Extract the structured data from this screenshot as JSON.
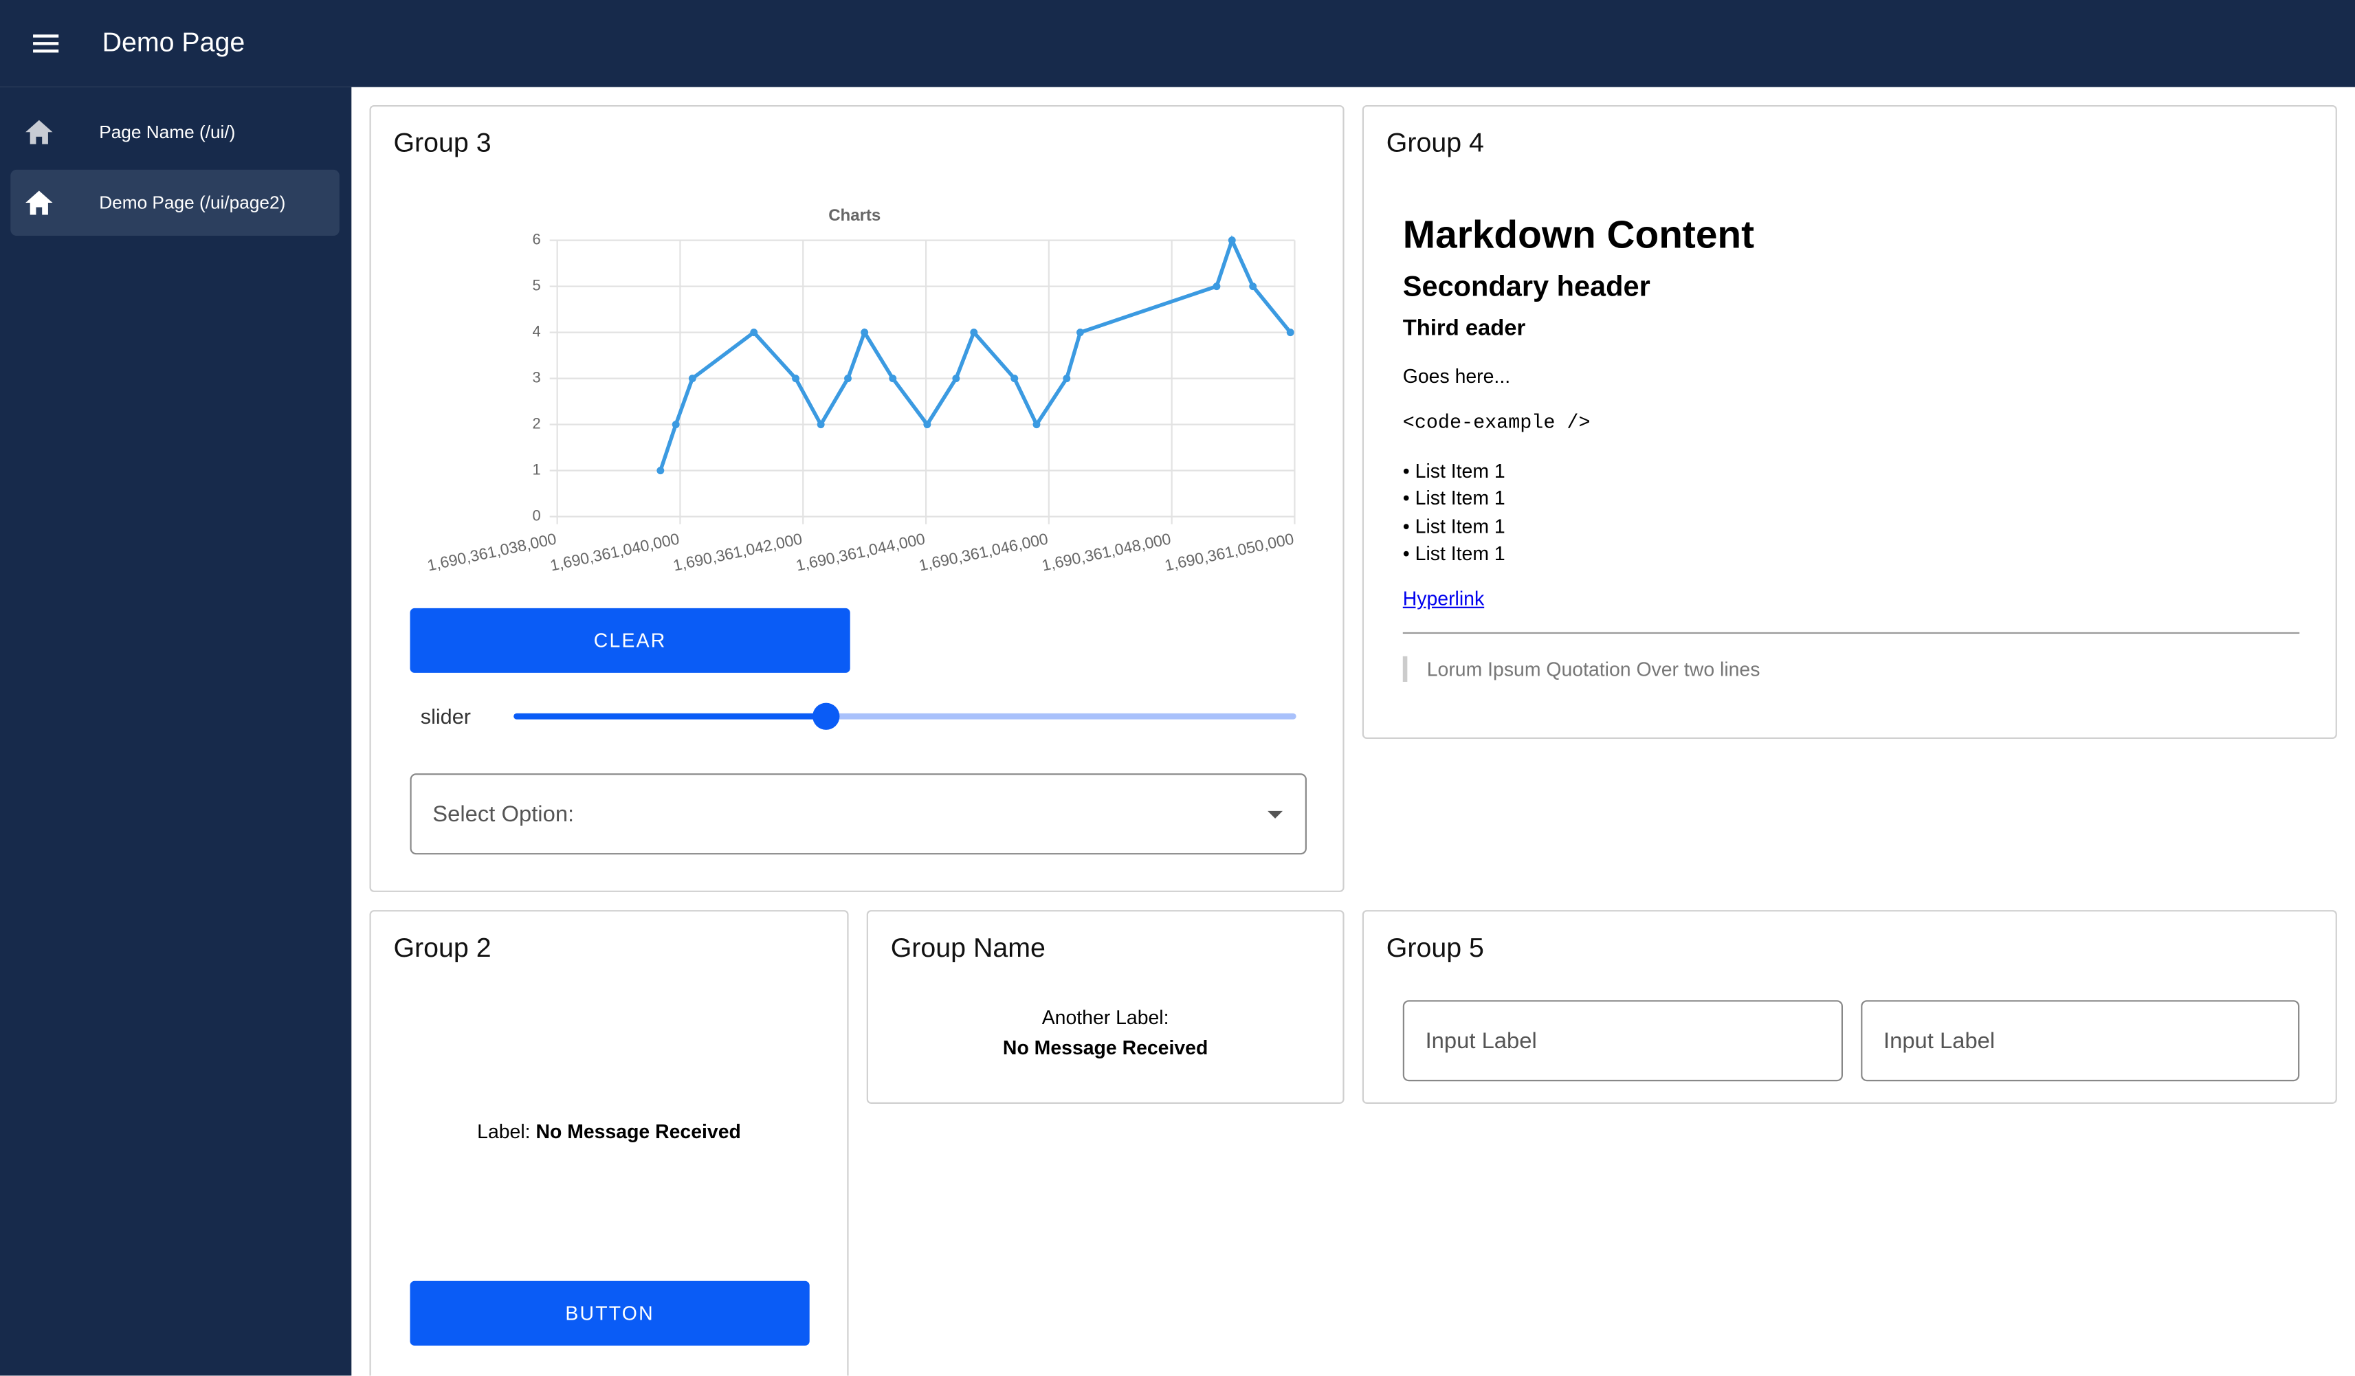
{
  "header": {
    "title": "Demo Page"
  },
  "nav": {
    "items": [
      "Page Name (/ui/)",
      "Demo Page (/ui/page2)"
    ]
  },
  "group3": {
    "title": "Group 3",
    "button": "CLEAR",
    "slider_label": "slider",
    "select_placeholder": "Select Option:"
  },
  "group4": {
    "title": "Group 4",
    "h1": "Markdown Content",
    "h2": "Secondary header",
    "h3": "Third eader",
    "paragraph": "Goes here...",
    "code": "<code-example />",
    "list": [
      "List Item 1",
      "List Item 1",
      "List Item 1",
      "List Item 1"
    ],
    "link": "Hyperlink",
    "quote": "Lorum Ipsum Quotation Over two lines"
  },
  "group2": {
    "title": "Group 2",
    "label": "Label:",
    "message": "No Message Received",
    "button": "BUTTON"
  },
  "group_name": {
    "title": "Group Name",
    "label": "Another Label:",
    "message": "No Message Received"
  },
  "group5": {
    "title": "Group 5",
    "inputs": [
      "Input Label",
      "Input Label"
    ]
  },
  "chart_data": {
    "type": "line",
    "title": "Charts",
    "x": [
      1690361039680,
      1690361039930,
      1690361040200,
      1690361041200,
      1690361041880,
      1690361042290,
      1690361042730,
      1690361043000,
      1690361043460,
      1690361044020,
      1690361044490,
      1690361044780,
      1690361045440,
      1690361045800,
      1690361046290,
      1690361046510,
      1690361048730,
      1690361048980,
      1690361049320,
      1690361049930
    ],
    "series": [
      {
        "color": "#3b9ae1",
        "values": [
          1,
          2,
          3,
          4,
          3,
          2,
          3,
          4,
          3,
          2,
          3,
          4,
          3,
          2,
          3,
          4,
          5,
          6,
          5,
          4
        ]
      }
    ],
    "xlim": [
      1690361038000,
      1690361050000
    ],
    "xticks": [
      {
        "value": 1690361038000,
        "label": "1,690,361,038,000"
      },
      {
        "value": 1690361040000,
        "label": "1,690,361,040,000"
      },
      {
        "value": 1690361042000,
        "label": "1,690,361,042,000"
      },
      {
        "value": 1690361044000,
        "label": "1,690,361,044,000"
      },
      {
        "value": 1690361046000,
        "label": "1,690,361,046,000"
      },
      {
        "value": 1690361048000,
        "label": "1,690,361,048,000"
      },
      {
        "value": 1690361050000,
        "label": "1,690,361,050,000"
      }
    ],
    "ylim": [
      0,
      6
    ],
    "yticks": [
      0,
      1,
      2,
      3,
      4,
      5,
      6
    ],
    "grid": true
  }
}
